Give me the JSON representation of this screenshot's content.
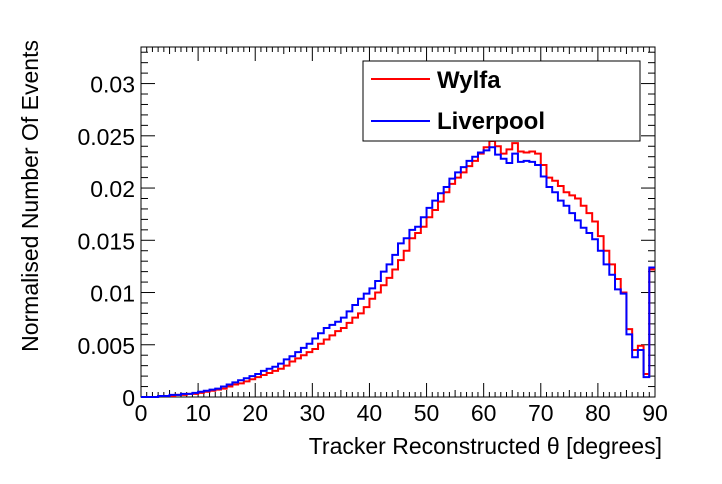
{
  "chart_data": {
    "type": "line",
    "xlabel": "Tracker Reconstructed θ [degrees]",
    "ylabel": "Normalised Number Of Events",
    "xlim": [
      0,
      90
    ],
    "ylim": [
      0,
      0.0335
    ],
    "x_ticks": [
      0,
      10,
      20,
      30,
      40,
      50,
      60,
      70,
      80,
      90
    ],
    "x_tick_labels": [
      "0",
      "10",
      "20",
      "30",
      "40",
      "50",
      "60",
      "70",
      "80",
      "90"
    ],
    "y_ticks": [
      0,
      0.005,
      0.01,
      0.015,
      0.02,
      0.025,
      0.03
    ],
    "y_tick_labels": [
      "0",
      "0.005",
      "0.01",
      "0.015",
      "0.02",
      "0.025",
      "0.03"
    ],
    "grid": false,
    "legend_position": "top-right",
    "bin_width": 1,
    "series": [
      {
        "name": "Wylfa",
        "color": "#ff0000",
        "values": [
          0.0,
          0.0,
          0.0,
          0.0001,
          0.0001,
          0.0001,
          0.0002,
          0.0002,
          0.0003,
          0.0003,
          0.0004,
          0.0005,
          0.0006,
          0.0007,
          0.0008,
          0.001,
          0.0012,
          0.0013,
          0.0015,
          0.0017,
          0.0019,
          0.0021,
          0.0023,
          0.0025,
          0.0027,
          0.003,
          0.0034,
          0.0037,
          0.004,
          0.0043,
          0.0046,
          0.0051,
          0.0055,
          0.0059,
          0.0063,
          0.0066,
          0.0071,
          0.0076,
          0.008,
          0.0086,
          0.0094,
          0.01,
          0.0107,
          0.0114,
          0.0122,
          0.0131,
          0.014,
          0.0152,
          0.0157,
          0.0163,
          0.0172,
          0.0179,
          0.0187,
          0.0196,
          0.0204,
          0.021,
          0.0215,
          0.0221,
          0.0226,
          0.0233,
          0.0239,
          0.0245,
          0.024,
          0.0233,
          0.0237,
          0.0243,
          0.0235,
          0.0234,
          0.0235,
          0.0233,
          0.0222,
          0.021,
          0.0207,
          0.0202,
          0.0196,
          0.0193,
          0.019,
          0.0183,
          0.0176,
          0.0168,
          0.0154,
          0.014,
          0.0127,
          0.0113,
          0.01,
          0.0065,
          0.0045,
          0.0049,
          0.0022,
          0.0122
        ]
      },
      {
        "name": "Liverpool",
        "color": "#0000ff",
        "values": [
          0.0,
          0.0,
          0.0,
          0.0001,
          0.0001,
          0.0002,
          0.0002,
          0.0003,
          0.0003,
          0.0004,
          0.0005,
          0.0006,
          0.0007,
          0.0008,
          0.001,
          0.0012,
          0.0014,
          0.0016,
          0.0018,
          0.002,
          0.0022,
          0.0025,
          0.0027,
          0.0029,
          0.0032,
          0.0036,
          0.0039,
          0.0043,
          0.0047,
          0.0051,
          0.0056,
          0.0061,
          0.0066,
          0.0069,
          0.0072,
          0.0076,
          0.0082,
          0.0088,
          0.0094,
          0.0099,
          0.0104,
          0.0111,
          0.012,
          0.0127,
          0.0136,
          0.0147,
          0.0152,
          0.016,
          0.0163,
          0.0172,
          0.0181,
          0.0188,
          0.0195,
          0.0201,
          0.0209,
          0.0215,
          0.022,
          0.0226,
          0.023,
          0.0234,
          0.0236,
          0.0239,
          0.0232,
          0.0228,
          0.0224,
          0.0233,
          0.0225,
          0.0226,
          0.0225,
          0.0222,
          0.0211,
          0.0201,
          0.0196,
          0.0188,
          0.0183,
          0.0176,
          0.0169,
          0.0162,
          0.0157,
          0.0151,
          0.014,
          0.0127,
          0.0117,
          0.0103,
          0.0099,
          0.006,
          0.0038,
          0.0045,
          0.0019,
          0.0124
        ]
      }
    ]
  }
}
